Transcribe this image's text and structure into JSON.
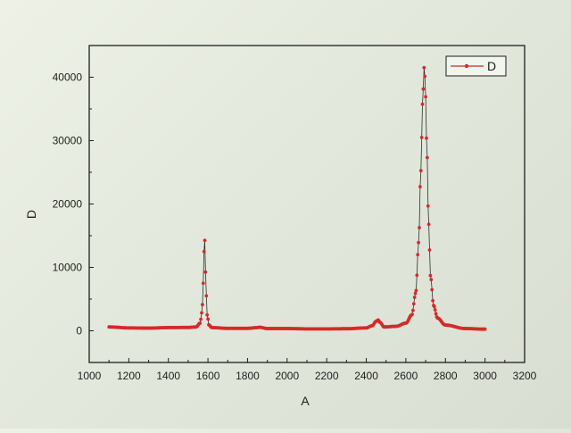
{
  "chart_data": {
    "type": "scatter",
    "title": "",
    "xlabel": "A",
    "ylabel": "D",
    "xlim": [
      1000,
      3200
    ],
    "ylim": [
      -5000,
      45000
    ],
    "xticks": [
      1000,
      1200,
      1400,
      1600,
      1800,
      2000,
      2200,
      2400,
      2600,
      2800,
      3000,
      3200
    ],
    "yticks": [
      0,
      10000,
      20000,
      30000,
      40000
    ],
    "grid": false,
    "legend_position": "top-right",
    "series": [
      {
        "name": "D",
        "color": "#d42b2b",
        "line_color": "#2f2f2f",
        "marker": "circle",
        "x_range": [
          1100,
          3000
        ],
        "x_step": 4,
        "baseline": 450,
        "points": [
          [
            1100,
            600
          ],
          [
            1200,
            450
          ],
          [
            1300,
            420
          ],
          [
            1400,
            500
          ],
          [
            1500,
            520
          ],
          [
            1540,
            600
          ],
          [
            1560,
            1200
          ],
          [
            1570,
            3000
          ],
          [
            1576,
            7500
          ],
          [
            1580,
            12500
          ],
          [
            1583,
            15000
          ],
          [
            1586,
            12000
          ],
          [
            1590,
            6500
          ],
          [
            1596,
            2500
          ],
          [
            1605,
            900
          ],
          [
            1620,
            500
          ],
          [
            1700,
            380
          ],
          [
            1800,
            380
          ],
          [
            1850,
            500
          ],
          [
            1860,
            550
          ],
          [
            1900,
            350
          ],
          [
            2000,
            350
          ],
          [
            2100,
            300
          ],
          [
            2200,
            300
          ],
          [
            2300,
            320
          ],
          [
            2400,
            450
          ],
          [
            2430,
            800
          ],
          [
            2450,
            1500
          ],
          [
            2460,
            1700
          ],
          [
            2470,
            1300
          ],
          [
            2490,
            600
          ],
          [
            2550,
            700
          ],
          [
            2600,
            1200
          ],
          [
            2630,
            2500
          ],
          [
            2650,
            6000
          ],
          [
            2665,
            14000
          ],
          [
            2675,
            25000
          ],
          [
            2685,
            36000
          ],
          [
            2692,
            41500
          ],
          [
            2697,
            40000
          ],
          [
            2705,
            30000
          ],
          [
            2715,
            17000
          ],
          [
            2725,
            8500
          ],
          [
            2740,
            4000
          ],
          [
            2760,
            2000
          ],
          [
            2800,
            900
          ],
          [
            2900,
            350
          ],
          [
            3000,
            250
          ]
        ]
      }
    ]
  }
}
